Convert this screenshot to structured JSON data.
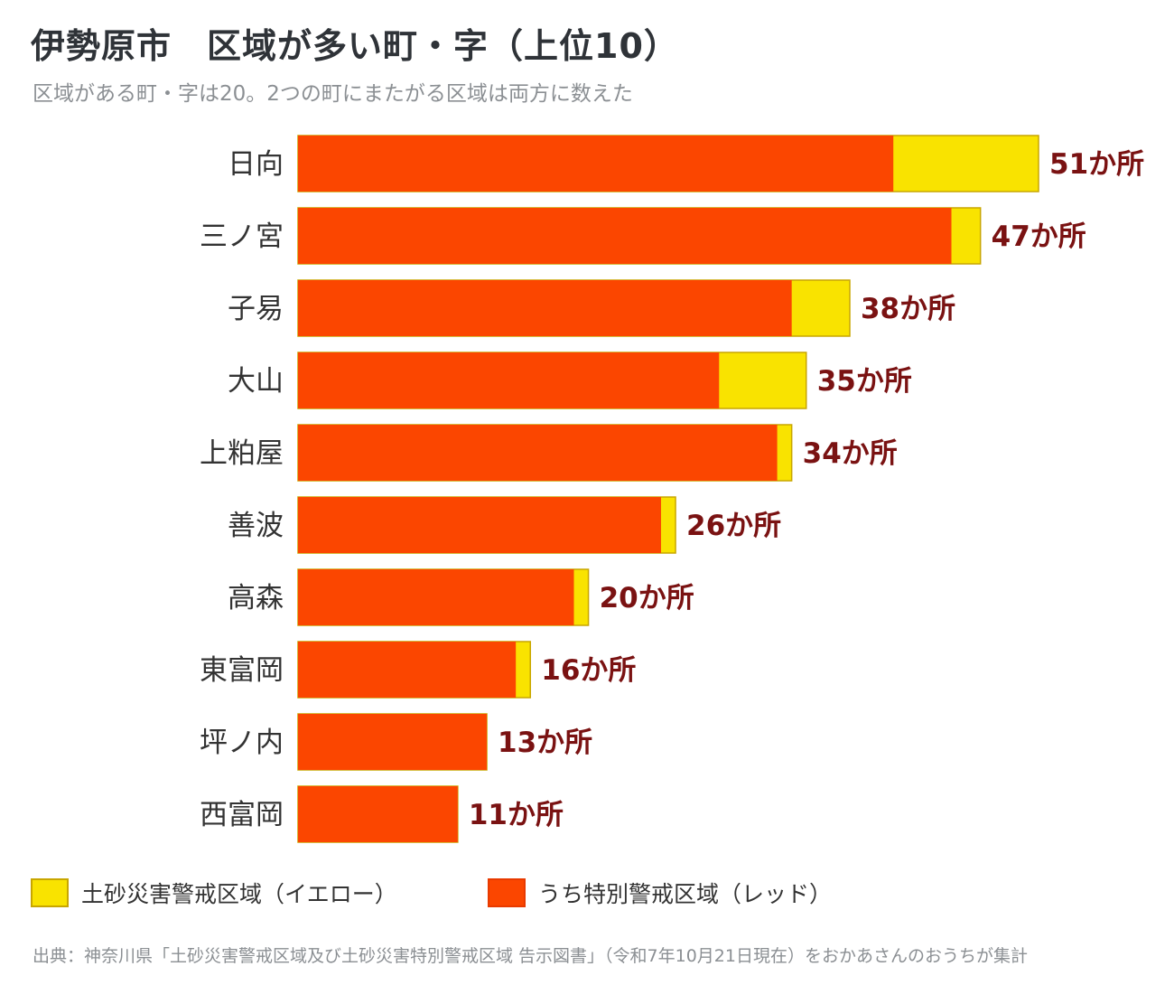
{
  "title": "伊勢原市　区域が多い町・字（上位10）",
  "subtitle": "区域がある町・字は20。2つの町にまたがる区域は両方に数えた",
  "colors": {
    "yellow": "#f9e300",
    "red": "#fb4600",
    "value_text": "#7a1212"
  },
  "chart_data": {
    "type": "bar",
    "orientation": "horizontal",
    "stacked": true,
    "categories": [
      "日向",
      "三ノ宮",
      "子易",
      "大山",
      "上粕屋",
      "善波",
      "高森",
      "東富岡",
      "坪ノ内",
      "西富岡"
    ],
    "series": [
      {
        "name": "うち特別警戒区域（レッド）",
        "values": [
          41,
          45,
          34,
          29,
          33,
          25,
          19,
          15,
          13,
          11
        ]
      },
      {
        "name": "土砂災害警戒区域（イエロー）",
        "values": [
          10,
          2,
          4,
          6,
          1,
          1,
          1,
          1,
          0,
          0
        ]
      }
    ],
    "totals": [
      51,
      47,
      38,
      35,
      34,
      26,
      20,
      16,
      13,
      11
    ],
    "value_labels": [
      "51か所",
      "47か所",
      "38か所",
      "35か所",
      "34か所",
      "26か所",
      "20か所",
      "16か所",
      "13か所",
      "11か所"
    ],
    "xlim": [
      0,
      51
    ],
    "grid": false
  },
  "legend": {
    "yellow_label": "土砂災害警戒区域（イエロー）",
    "red_label": "うち特別警戒区域（レッド）"
  },
  "source": "出典：神奈川県「土砂災害警戒区域及び土砂災害特別警戒区域 告示図書」（令和7年10月21日現在）をおかあさんのおうちが集計"
}
